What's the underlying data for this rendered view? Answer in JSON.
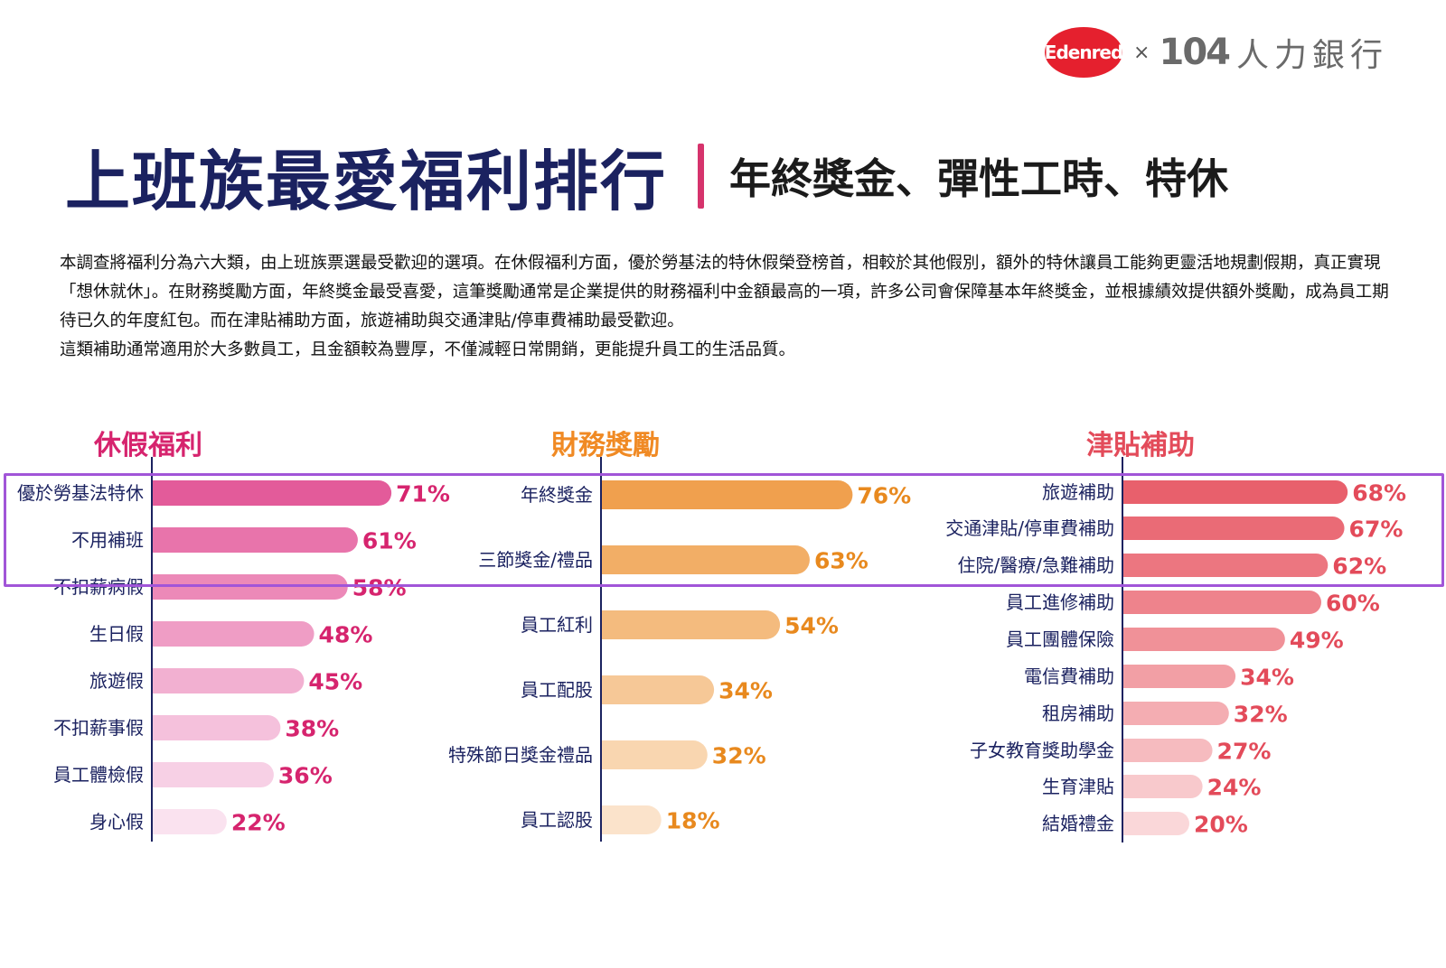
{
  "brand": {
    "edenred": "Edenred",
    "times": "×",
    "brand104": "104",
    "brand104_name": "人力銀行"
  },
  "header": {
    "title": "上班族最愛福利排行",
    "subtitle": "年終獎金、彈性工時、特休"
  },
  "intro": [
    "本調查將福利分為六大類，由上班族票選最受歡迎的選項。在休假福利方面，優於勞基法的特休假榮登榜首，相較於其他假別，額外的特休讓員工能夠更靈活地規劃假期，真正實現「想休就休」。在財務獎勵方面，年終獎金最受喜愛，這筆獎勵通常是企業提供的財務福利中金額最高的一項，許多公司會保障基本年終獎金，並根據績效提供額外獎勵，成為員工期待已久的年度紅包。而在津貼補助方面，旅遊補助與交通津貼/停車費補助最受歡迎。",
    "這類補助通常適用於大多數員工，且金額較為豐厚，不僅減輕日常開銷，更能提升員工的生活品質。"
  ],
  "chart_data": [
    {
      "type": "bar",
      "orientation": "horizontal",
      "title": "休假福利",
      "categories": [
        "優於勞基法特休",
        "不用補班",
        "不扣薪病假",
        "生日假",
        "旅遊假",
        "不扣薪事假",
        "員工體檢假",
        "身心假"
      ],
      "values": [
        71,
        61,
        58,
        48,
        45,
        38,
        36,
        22
      ],
      "labels": [
        "71%",
        "61%",
        "58%",
        "48%",
        "45%",
        "38%",
        "36%",
        "22%"
      ],
      "unit": "%",
      "title_color": "#d6246e",
      "bar_colors": [
        "#e35b9a",
        "#e874ab",
        "#ec89b8",
        "#ef9dc5",
        "#f2b0d1",
        "#f5c1dc",
        "#f7d0e5",
        "#fae2ef"
      ],
      "label_color": "#d6246e"
    },
    {
      "type": "bar",
      "orientation": "horizontal",
      "title": "財務獎勵",
      "categories": [
        "年終獎金",
        "三節獎金/禮品",
        "員工紅利",
        "員工配股",
        "特殊節日獎金禮品",
        "員工認股"
      ],
      "values": [
        76,
        63,
        54,
        34,
        32,
        18
      ],
      "labels": [
        "76%",
        "63%",
        "54%",
        "34%",
        "32%",
        "18%"
      ],
      "unit": "%",
      "title_color": "#f08a24",
      "bar_colors": [
        "#f0a04e",
        "#f2ae66",
        "#f4bb7e",
        "#f6c897",
        "#f9d6b0",
        "#fbe3cb"
      ],
      "label_color": "#e8891e"
    },
    {
      "type": "bar",
      "orientation": "horizontal",
      "title": "津貼補助",
      "categories": [
        "旅遊補助",
        "交通津貼/停車費補助",
        "住院/醫療/急難補助",
        "員工進修補助",
        "員工團體保險",
        "電信費補助",
        "租房補助",
        "子女教育獎助學金",
        "生育津貼",
        "結婚禮金"
      ],
      "values": [
        68,
        67,
        62,
        60,
        49,
        34,
        32,
        27,
        24,
        20
      ],
      "labels": [
        "68%",
        "67%",
        "62%",
        "60%",
        "49%",
        "34%",
        "32%",
        "27%",
        "24%",
        "20%"
      ],
      "unit": "%",
      "title_color": "#e34b5a",
      "bar_colors": [
        "#e8606c",
        "#ea6b76",
        "#ec7680",
        "#ee838c",
        "#f09198",
        "#f29fa5",
        "#f4adb2",
        "#f6bbbf",
        "#f8c9cc",
        "#fad7d9"
      ],
      "label_color": "#e34b5a"
    }
  ]
}
